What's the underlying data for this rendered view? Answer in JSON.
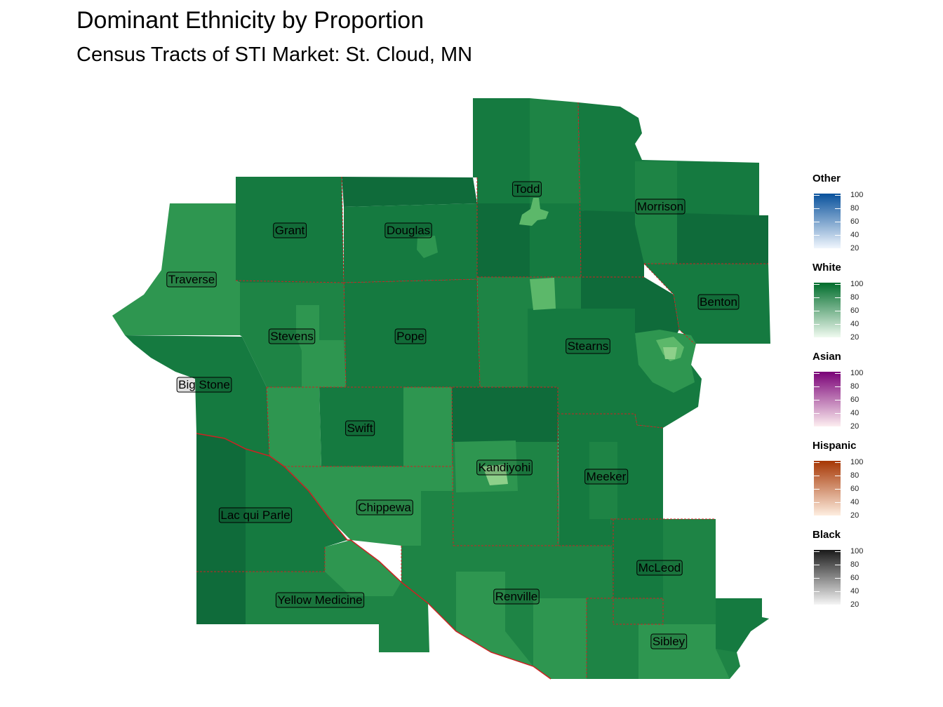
{
  "title": "Dominant Ethnicity by Proportion",
  "subtitle": "Census Tracts of STI Market: St. Cloud, MN",
  "counties": [
    {
      "name": "Todd"
    },
    {
      "name": "Morrison"
    },
    {
      "name": "Grant"
    },
    {
      "name": "Douglas"
    },
    {
      "name": "Traverse"
    },
    {
      "name": "Benton"
    },
    {
      "name": "Stevens"
    },
    {
      "name": "Pope"
    },
    {
      "name": "Stearns"
    },
    {
      "name": "Big Stone"
    },
    {
      "name": "Swift"
    },
    {
      "name": "Kandiyohi"
    },
    {
      "name": "Meeker"
    },
    {
      "name": "Lac qui Parle"
    },
    {
      "name": "Chippewa"
    },
    {
      "name": "McLeod"
    },
    {
      "name": "Yellow Medicine"
    },
    {
      "name": "Renville"
    },
    {
      "name": "Sibley"
    }
  ],
  "legend": [
    {
      "title": "Other",
      "low": "#f0f6fd",
      "high": "#08519c",
      "ticks": [
        "100",
        "80",
        "60",
        "40",
        "20"
      ]
    },
    {
      "title": "White",
      "low": "#f0faf0",
      "high": "#006d2c",
      "ticks": [
        "100",
        "80",
        "60",
        "40",
        "20"
      ]
    },
    {
      "title": "Asian",
      "low": "#fdeef0",
      "high": "#7a0177",
      "ticks": [
        "100",
        "80",
        "60",
        "40",
        "20"
      ]
    },
    {
      "title": "Hispanic",
      "low": "#feeee0",
      "high": "#a63603",
      "ticks": [
        "100",
        "80",
        "60",
        "40",
        "20"
      ]
    },
    {
      "title": "Black",
      "low": "#f5f5f5",
      "high": "#1a1a1a",
      "ticks": [
        "100",
        "80",
        "60",
        "40",
        "20"
      ]
    }
  ],
  "colors": {
    "white_90": "#0f6b3a",
    "white_85": "#157a40",
    "white_80": "#1e8445",
    "white_70": "#2e9650",
    "white_55": "#5cb86a",
    "white_40": "#8ed08a",
    "county_border": "#cc2222"
  }
}
